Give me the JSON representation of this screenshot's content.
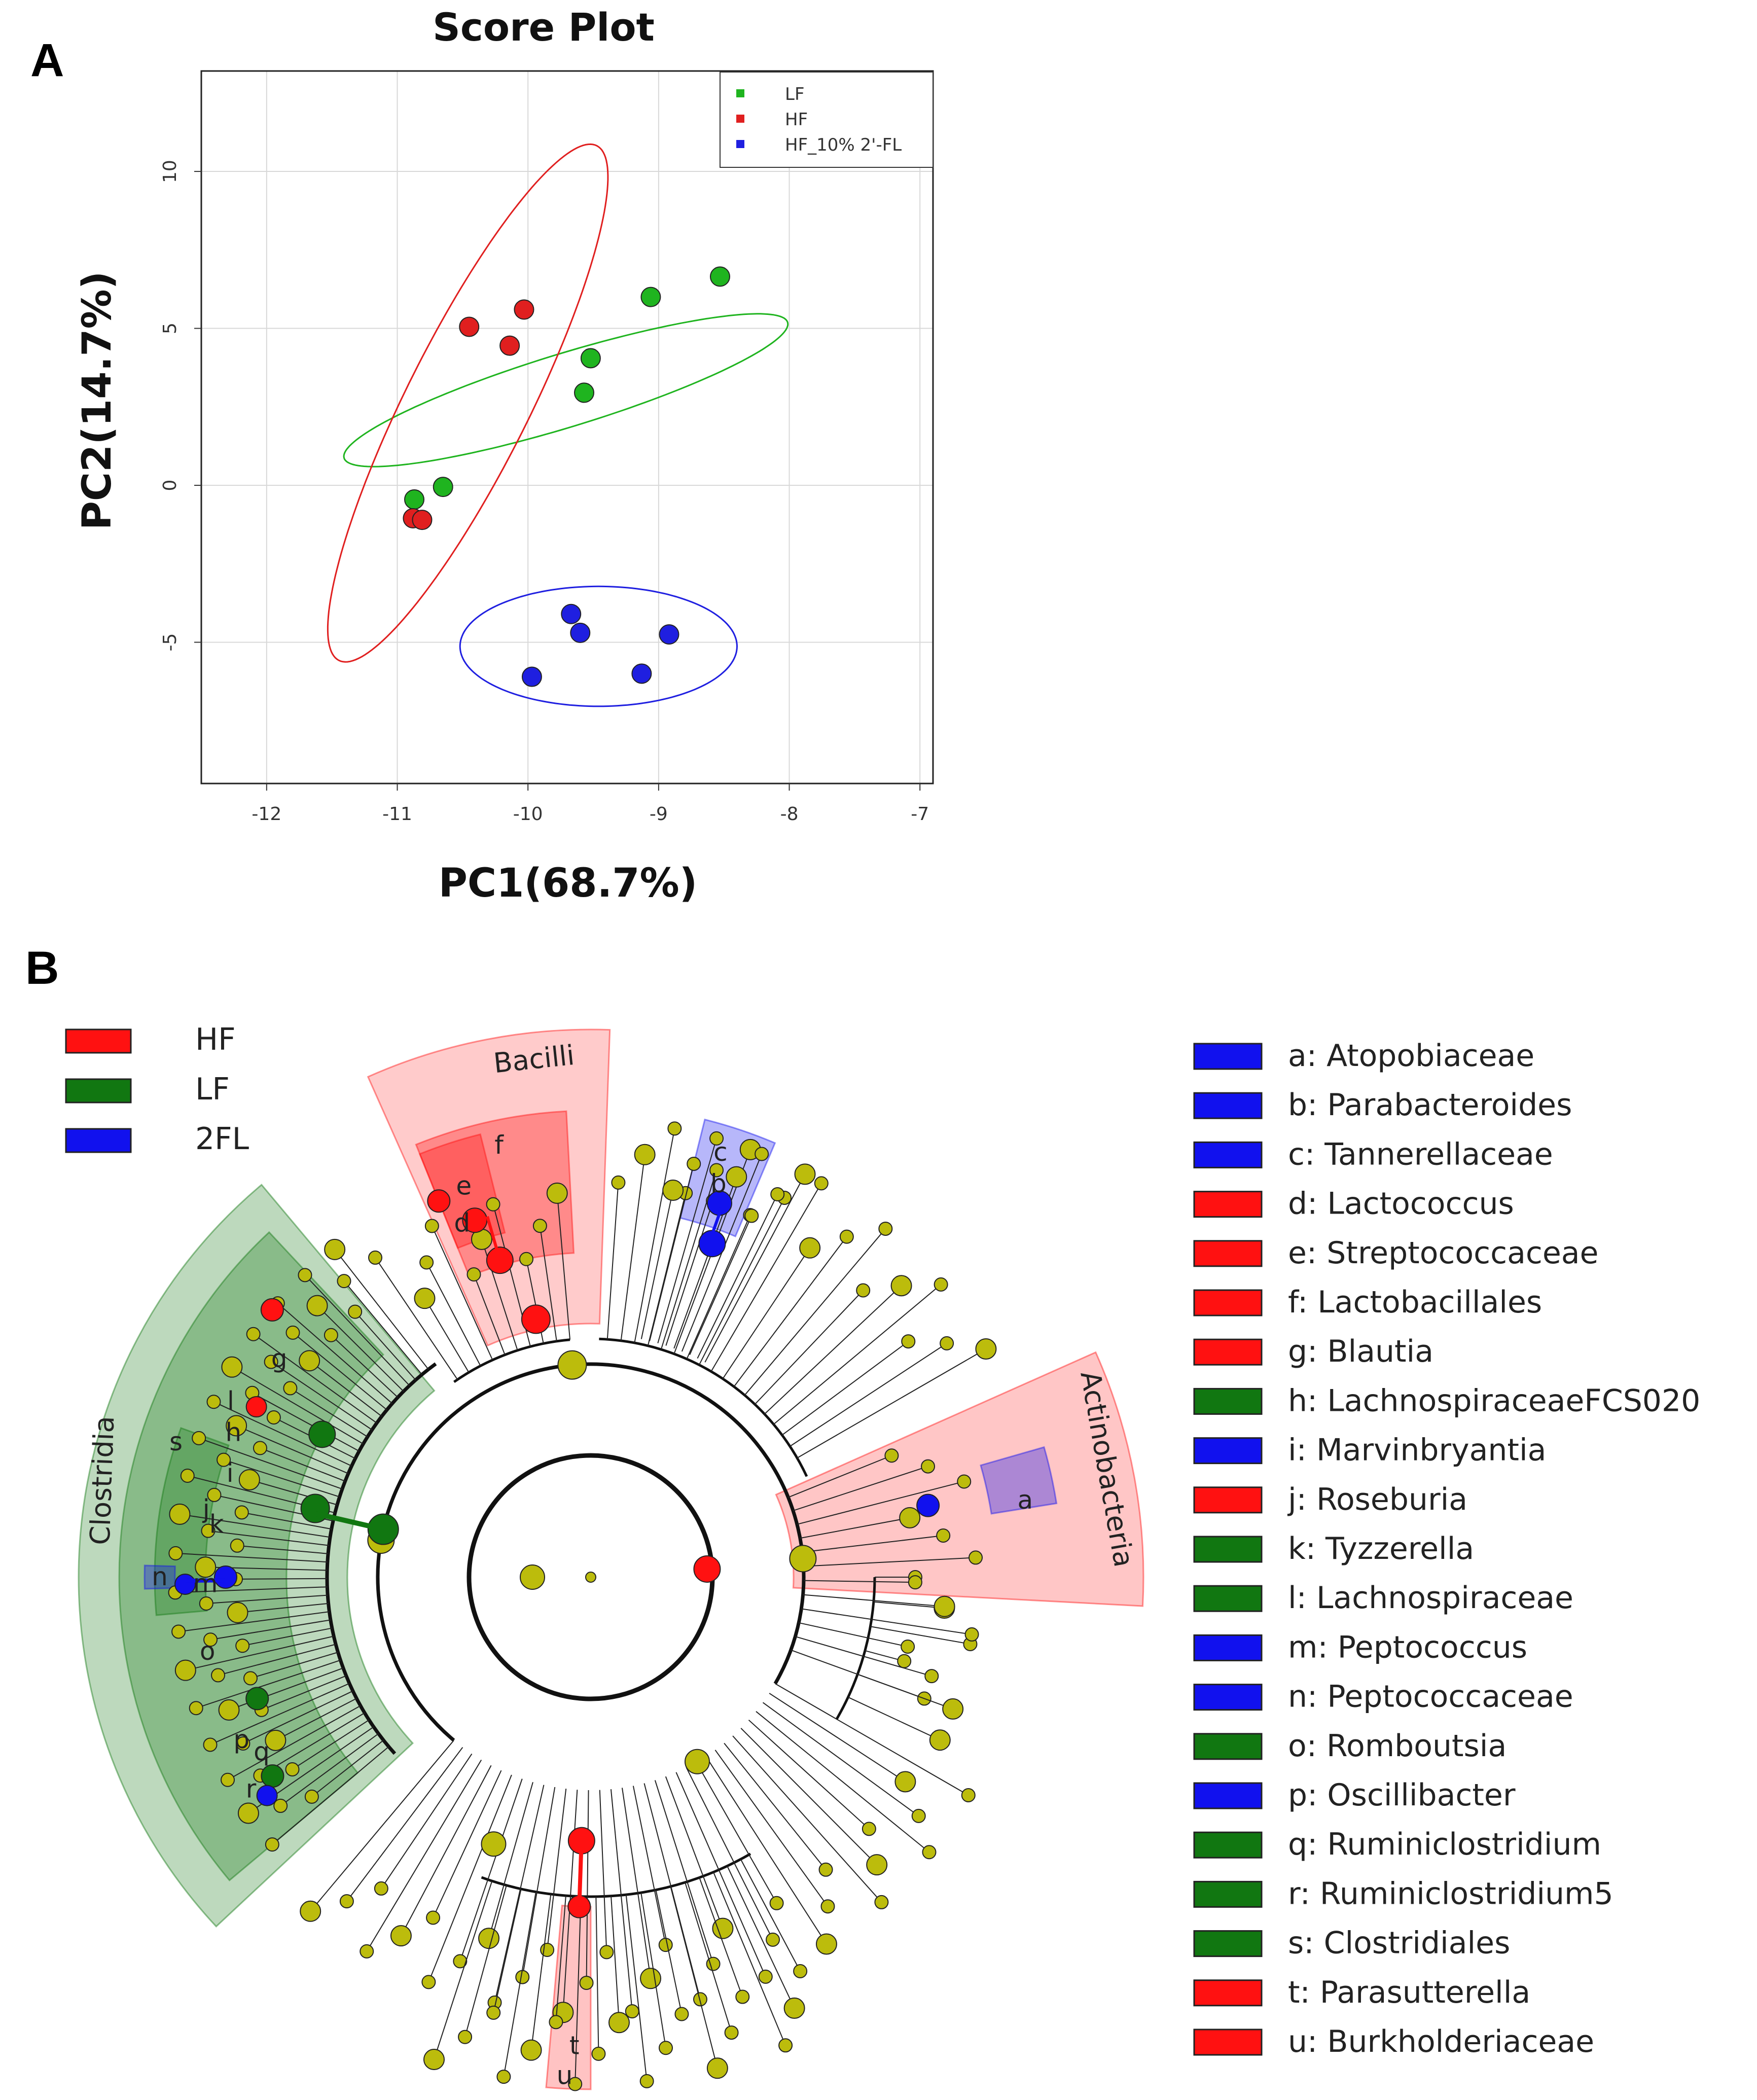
{
  "figure": {
    "panel_a_label": "A",
    "panel_b_label": "B"
  },
  "chart_data": [
    {
      "type": "scatter",
      "title": "Score Plot",
      "xlabel": "PC1(68.7%)",
      "ylabel": "PC2(14.7%)",
      "xlim": [
        -12.5,
        -6.9
      ],
      "ylim": [
        -9.5,
        13.2
      ],
      "xticks": [
        -12,
        -11,
        -10,
        -9,
        -8,
        -7
      ],
      "yticks": [
        -5,
        0,
        5,
        10
      ],
      "grid": true,
      "legend_position": "top-right",
      "series": [
        {
          "name": "LF",
          "color": "#1fb41f",
          "points": [
            [
              -10.87,
              -0.45
            ],
            [
              -10.65,
              -0.05
            ],
            [
              -9.57,
              2.95
            ],
            [
              -9.52,
              4.05
            ],
            [
              -9.06,
              6.0
            ],
            [
              -8.53,
              6.65
            ]
          ]
        },
        {
          "name": "HF",
          "color": "#e01f1f",
          "points": [
            [
              -10.88,
              -1.05
            ],
            [
              -10.81,
              -1.1
            ],
            [
              -10.45,
              5.05
            ],
            [
              -10.14,
              4.45
            ],
            [
              -10.03,
              5.6
            ]
          ]
        },
        {
          "name": "HF_10% 2'-FL",
          "color": "#1f1fe0",
          "points": [
            [
              -9.67,
              -4.1
            ],
            [
              -9.6,
              -4.7
            ],
            [
              -9.97,
              -6.1
            ],
            [
              -9.13,
              -6.0
            ],
            [
              -8.92,
              -4.75
            ]
          ]
        }
      ],
      "ellipses": [
        {
          "group": "LF",
          "color": "#1fb41f",
          "cx": -9.71,
          "cy": 3.03,
          "a": 2.88,
          "b": 0.72,
          "angle_deg": 56.5
        },
        {
          "group": "HF",
          "color": "#e01f1f",
          "cx": -10.46,
          "cy": 2.62,
          "a": 8.3,
          "b": 0.52,
          "angle_deg": 83.5
        },
        {
          "group": "HF_10% 2'-FL",
          "color": "#1f1fe0",
          "cx": -9.46,
          "cy": -5.13,
          "a": 1.06,
          "b": 1.91,
          "angle_deg": 0
        }
      ]
    },
    {
      "type": "cladogram",
      "legend": [
        {
          "name": "HF",
          "color": "#ff1111"
        },
        {
          "name": "LF",
          "color": "#117711"
        },
        {
          "name": "2FL",
          "color": "#1111ee"
        }
      ],
      "clade_labels": [
        "Clostridia",
        "Bacilli",
        "Actinobacteria"
      ],
      "sector_letters": [
        "a",
        "b",
        "c",
        "d",
        "e",
        "f",
        "t",
        "u",
        "n",
        "m",
        "o",
        "p",
        "q",
        "r",
        "s",
        "l",
        "g",
        "h",
        "i",
        "j",
        "k"
      ],
      "taxa": [
        {
          "letter": "a",
          "name": "Atopobiaceae",
          "group": "2FL",
          "color": "#1111ee"
        },
        {
          "letter": "b",
          "name": "Parabacteroides",
          "group": "2FL",
          "color": "#1111ee"
        },
        {
          "letter": "c",
          "name": "Tannerellaceae",
          "group": "2FL",
          "color": "#1111ee"
        },
        {
          "letter": "d",
          "name": "Lactococcus",
          "group": "HF",
          "color": "#ff1111"
        },
        {
          "letter": "e",
          "name": "Streptococcaceae",
          "group": "HF",
          "color": "#ff1111"
        },
        {
          "letter": "f",
          "name": "Lactobacillales",
          "group": "HF",
          "color": "#ff1111"
        },
        {
          "letter": "g",
          "name": "Blautia",
          "group": "HF",
          "color": "#ff1111"
        },
        {
          "letter": "h",
          "name": "LachnospiraceaeFCS020",
          "group": "LF",
          "color": "#117711"
        },
        {
          "letter": "i",
          "name": "Marvinbryantia",
          "group": "2FL",
          "color": "#1111ee"
        },
        {
          "letter": "j",
          "name": "Roseburia",
          "group": "HF",
          "color": "#ff1111"
        },
        {
          "letter": "k",
          "name": "Tyzzerella",
          "group": "LF",
          "color": "#117711"
        },
        {
          "letter": "l",
          "name": "Lachnospiraceae",
          "group": "LF",
          "color": "#117711"
        },
        {
          "letter": "m",
          "name": "Peptococcus",
          "group": "2FL",
          "color": "#1111ee"
        },
        {
          "letter": "n",
          "name": "Peptococcaceae",
          "group": "2FL",
          "color": "#1111ee"
        },
        {
          "letter": "o",
          "name": "Romboutsia",
          "group": "LF",
          "color": "#117711"
        },
        {
          "letter": "p",
          "name": "Oscillibacter",
          "group": "2FL",
          "color": "#1111ee"
        },
        {
          "letter": "q",
          "name": "Ruminiclostridium",
          "group": "LF",
          "color": "#117711"
        },
        {
          "letter": "r",
          "name": "Ruminiclostridium5",
          "group": "LF",
          "color": "#117711"
        },
        {
          "letter": "s",
          "name": "Clostridiales",
          "group": "LF",
          "color": "#117711"
        },
        {
          "letter": "t",
          "name": "Parasutterella",
          "group": "HF",
          "color": "#ff1111"
        },
        {
          "letter": "u",
          "name": "Burkholderiaceae",
          "group": "HF",
          "color": "#ff1111"
        }
      ]
    }
  ]
}
